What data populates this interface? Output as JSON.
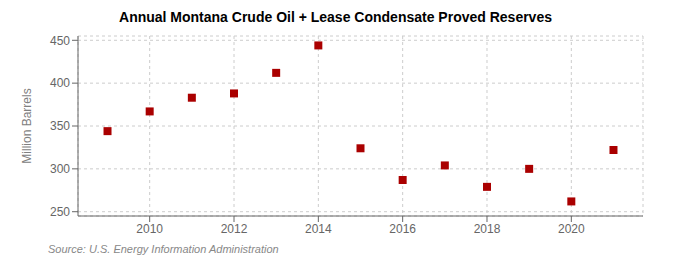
{
  "chart_data": {
    "type": "scatter",
    "title": "Annual Montana Crude Oil + Lease Condensate Proved Reserves",
    "ylabel": "Million Barrels",
    "annotation": "Source: U.S. Energy Information Administration",
    "x": [
      2009,
      2010,
      2011,
      2012,
      2013,
      2014,
      2015,
      2016,
      2017,
      2018,
      2019,
      2020,
      2021
    ],
    "values": [
      344,
      367,
      383,
      388,
      412,
      444,
      324,
      287,
      304,
      279,
      300,
      262,
      322
    ],
    "color": "#aa0000",
    "marker": "square",
    "xlim": [
      2008.3,
      2021.7
    ],
    "xticks": [
      2010,
      2012,
      2014,
      2016,
      2018,
      2020
    ],
    "ylim": [
      245,
      455
    ],
    "yticks": [
      250,
      300,
      350,
      400,
      450
    ],
    "grid": true
  }
}
